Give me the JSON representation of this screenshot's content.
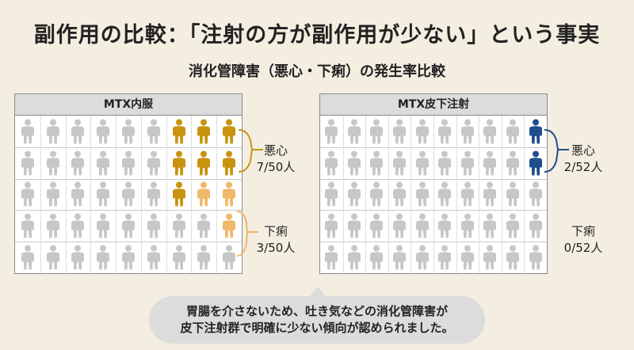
{
  "title": "副作用の比較：「注射の方が副作用が少ない」という事実",
  "subtitle": "消化管障害（悪心・下痢）の発生率比較",
  "colors": {
    "nausea_oral": "#c8930f",
    "diarrhea_oral": "#f0b86a",
    "nausea_sc": "#1f4e8c",
    "neutral": "#c7c7c7",
    "background": "#f4eee1"
  },
  "panels": [
    {
      "name": "MTX内服",
      "rows": 5,
      "cols": 9,
      "nausea": {
        "label": "悪心",
        "count_text": "7/50人",
        "count": 7,
        "total": 50
      },
      "diarrhea": {
        "label": "下痢",
        "count_text": "3/50人",
        "count": 3,
        "total": 50
      }
    },
    {
      "name": "MTX皮下注射",
      "rows": 5,
      "cols": 10,
      "nausea": {
        "label": "悪心",
        "count_text": "2/52人",
        "count": 2,
        "total": 52
      },
      "diarrhea": {
        "label": "下痢",
        "count_text": "0/52人",
        "count": 0,
        "total": 52
      }
    }
  ],
  "note_lines": [
    "胃腸を介さないため、吐き気などの消化管障害が",
    "皮下注射群で明確に少ない傾向が認められました。"
  ]
}
